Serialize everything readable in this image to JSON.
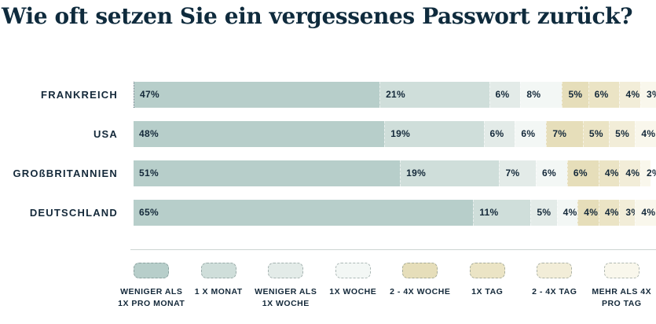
{
  "title": "Wie oft setzen Sie ein vergessenes Passwort zurück?",
  "colors": {
    "text": "#14293a",
    "title": "#0f2b3d",
    "background": "#ffffff",
    "divider": "#ccd4d2"
  },
  "chart_data": {
    "type": "bar",
    "orientation": "horizontal-stacked",
    "title": "Wie oft setzen Sie ein vergessenes Passwort zurück?",
    "unit": "%",
    "xlim": [
      0,
      100
    ],
    "grid": false,
    "legend_position": "bottom",
    "categories": [
      "FRANKREICH",
      "USA",
      "GROßBRITANNIEN",
      "DEUTSCHLAND"
    ],
    "legend": [
      {
        "label": "WENIGER ALS 1X PRO MONAT",
        "color": "#b7ceca"
      },
      {
        "label": "1 X MONAT",
        "color": "#cfdeda"
      },
      {
        "label": "WENIGER ALS 1X WOCHE",
        "color": "#e3ebe8"
      },
      {
        "label": "1X WOCHE",
        "color": "#f3f7f5"
      },
      {
        "label": "2 - 4X WOCHE",
        "color": "#e6deba"
      },
      {
        "label": "1X TAG",
        "color": "#ebe4c5"
      },
      {
        "label": "2 - 4X TAG",
        "color": "#f2edd8"
      },
      {
        "label": "MEHR ALS 4X PRO TAG",
        "color": "#f9f7ec"
      }
    ],
    "rows": [
      {
        "category": "FRANKREICH",
        "values": [
          47,
          21,
          6,
          8,
          5,
          6,
          4,
          3
        ]
      },
      {
        "category": "USA",
        "values": [
          48,
          19,
          6,
          6,
          7,
          5,
          5,
          4
        ]
      },
      {
        "category": "GROßBRITANNIEN",
        "values": [
          51,
          19,
          7,
          6,
          6,
          4,
          4,
          2
        ]
      },
      {
        "category": "DEUTSCHLAND",
        "values": [
          65,
          11,
          5,
          4,
          4,
          4,
          3,
          4
        ]
      }
    ]
  }
}
